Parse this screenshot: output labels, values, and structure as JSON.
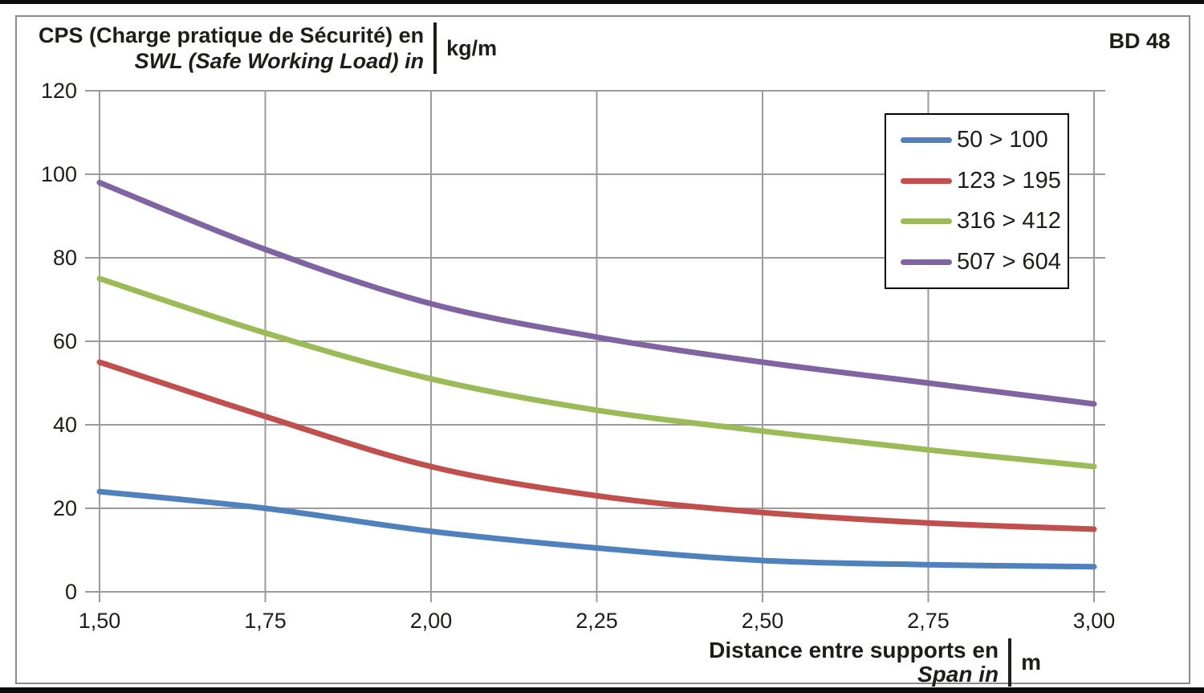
{
  "header": {
    "badge": "BD 48"
  },
  "chart_data": {
    "type": "line",
    "title_fr": "CPS (Charge pratique de Sécurité) en",
    "title_en": "SWL (Safe Working Load) in",
    "y_unit": "kg/m",
    "badge": "BD 48",
    "xlabel_fr": "Distance entre supports en",
    "xlabel_en": "Span in",
    "x_unit": "m",
    "x": [
      1.5,
      1.75,
      2.0,
      2.25,
      2.5,
      2.75,
      3.0
    ],
    "x_tick_labels": [
      "1,50",
      "1,75",
      "2,00",
      "2,25",
      "2,50",
      "2,75",
      "3,00"
    ],
    "y_ticks": [
      0,
      20,
      40,
      60,
      80,
      100,
      120
    ],
    "xlim": [
      1.5,
      3.0
    ],
    "ylim": [
      0,
      120
    ],
    "grid": true,
    "legend_position": "top-right",
    "gridline_color": "#9b9b9b",
    "series": [
      {
        "name": "50 > 100",
        "color": "#4F81BD",
        "values": [
          24,
          20,
          14.5,
          10.5,
          7.5,
          6.5,
          6
        ]
      },
      {
        "name": "123 > 195",
        "color": "#C0504D",
        "values": [
          55,
          42,
          30,
          23,
          19,
          16.5,
          15
        ]
      },
      {
        "name": "316 > 412",
        "color": "#9BBB59",
        "values": [
          75,
          62,
          51,
          43.5,
          38.5,
          34,
          30
        ]
      },
      {
        "name": "507 > 604",
        "color": "#8064A2",
        "values": [
          98,
          82,
          69,
          61,
          55,
          50,
          45
        ]
      }
    ]
  }
}
